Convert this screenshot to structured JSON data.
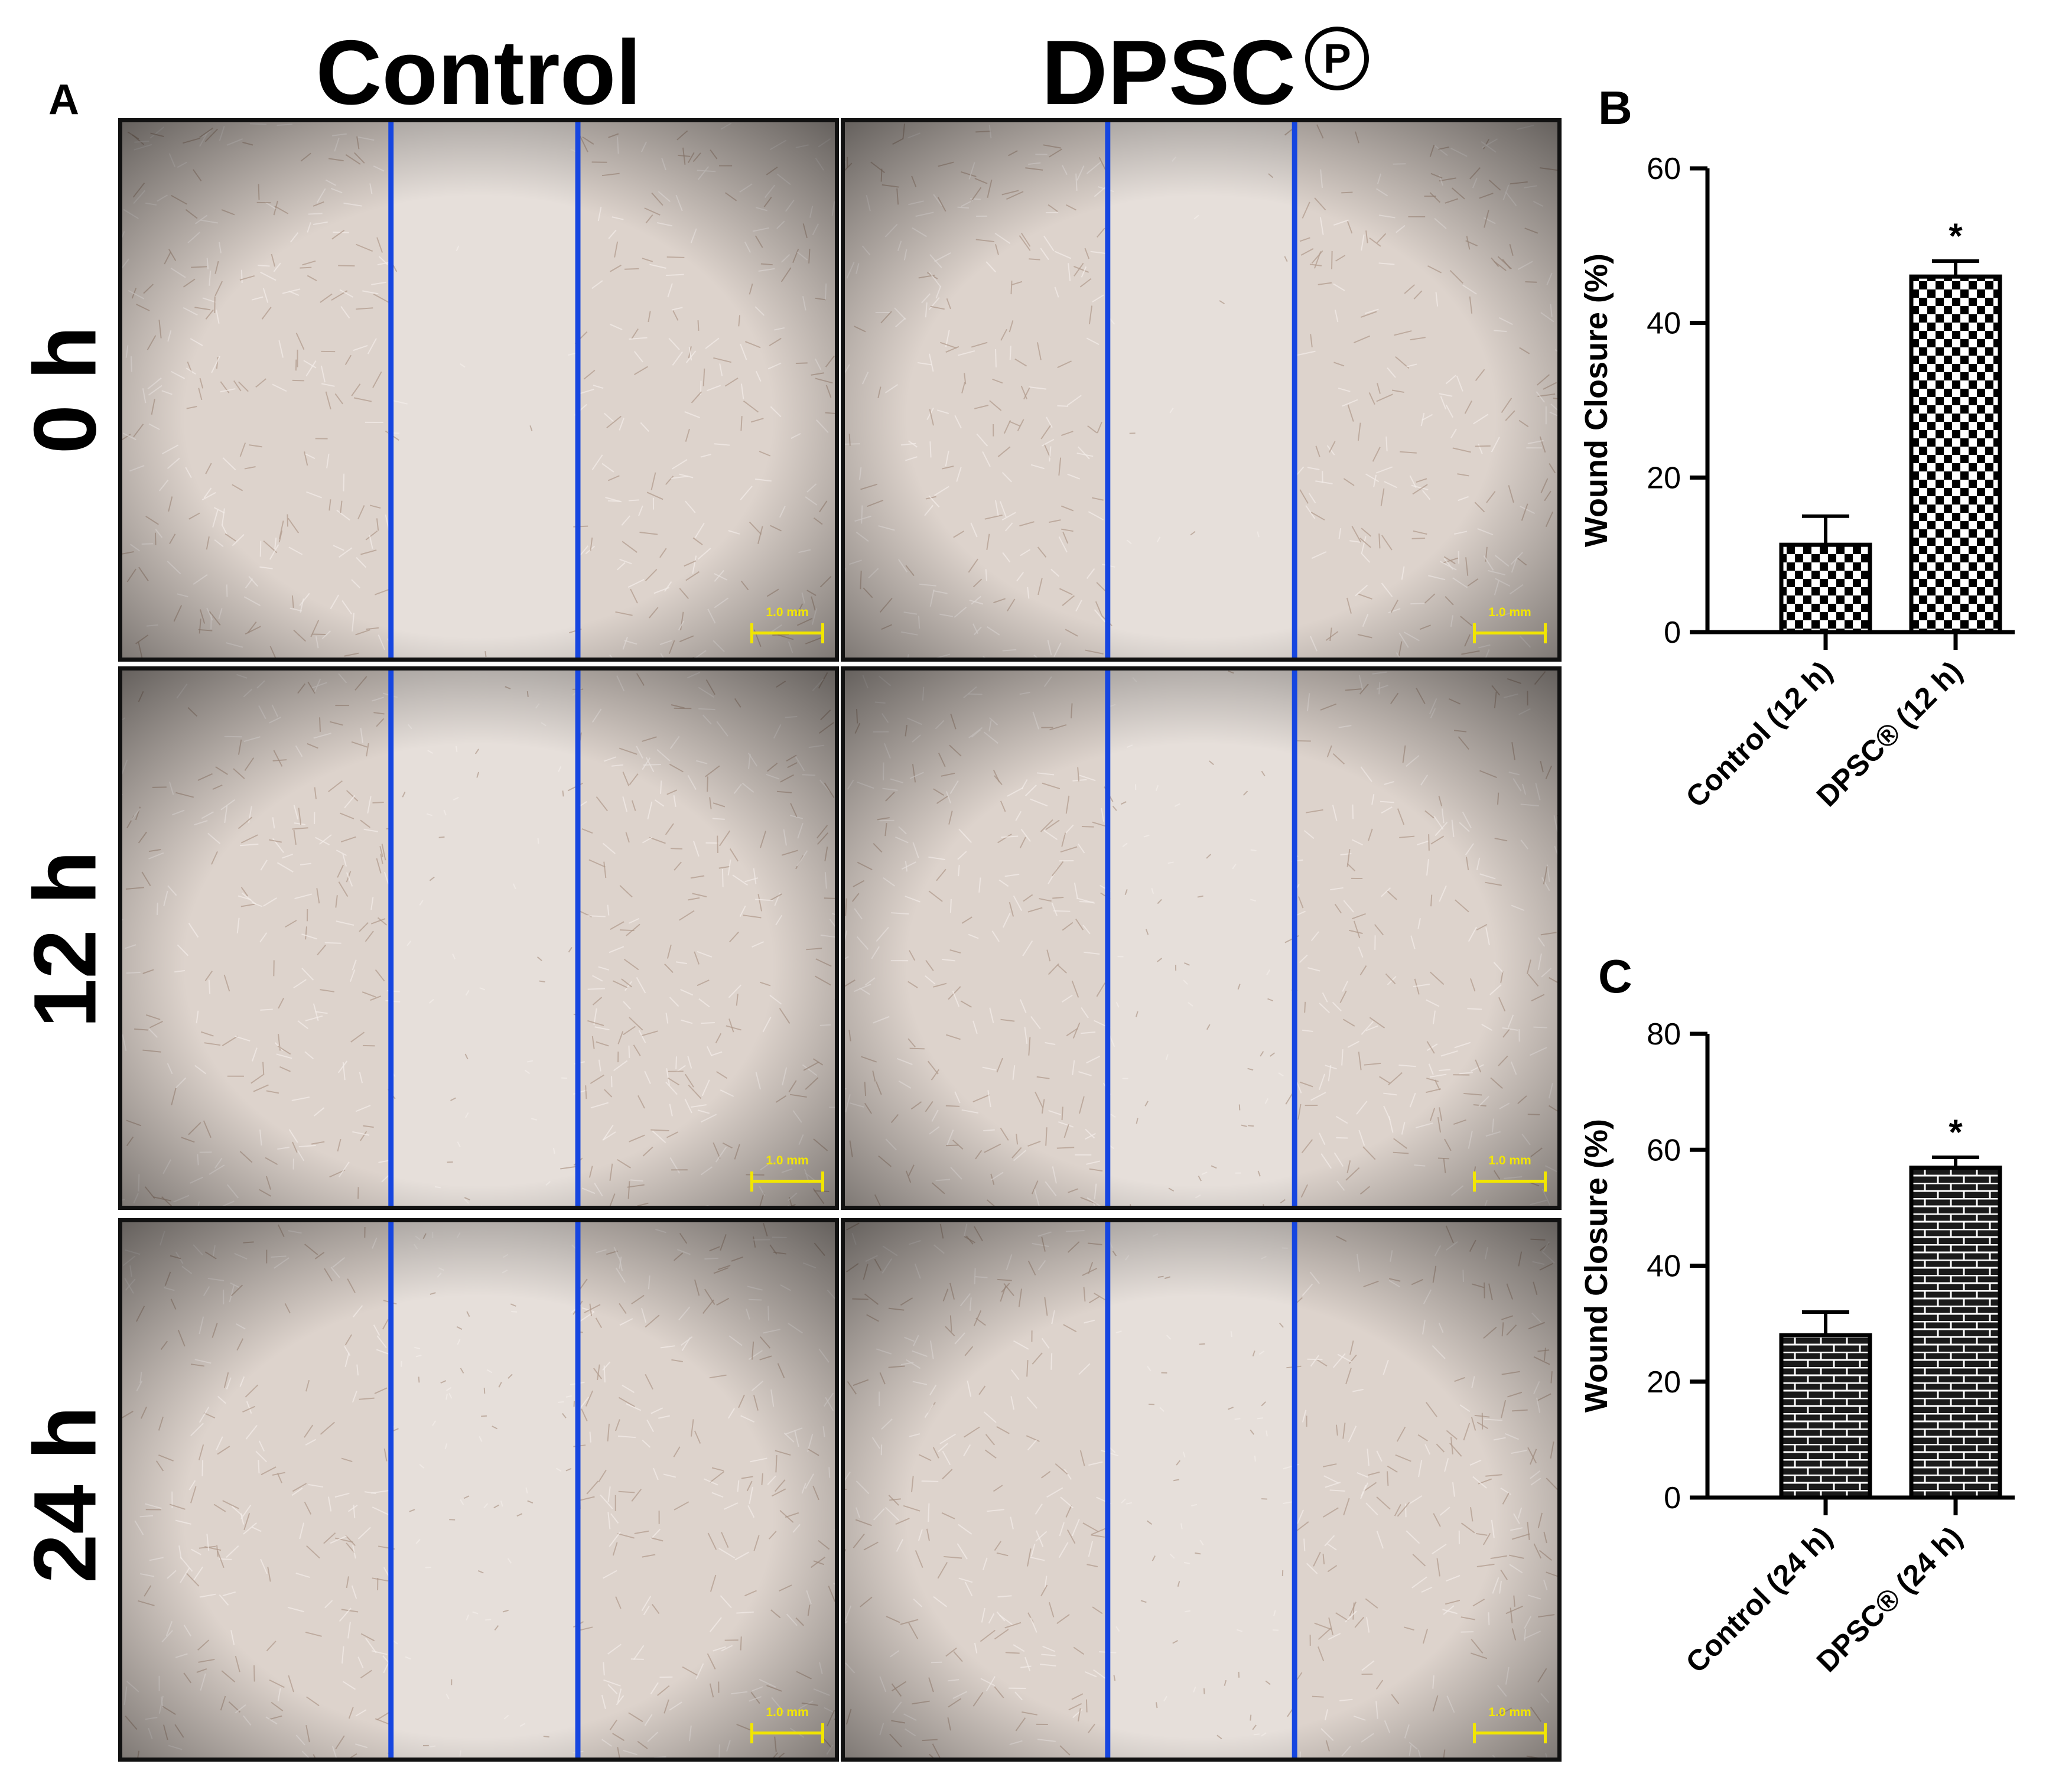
{
  "figure": {
    "panel_a": "A",
    "columns": [
      "Control",
      "DPSC"
    ],
    "column_mark": "P",
    "rows": [
      "0 h",
      "12 h",
      "24 h"
    ],
    "scale_label": "1.0 mm",
    "colors": {
      "wound_line": "#1646e0",
      "scale_bar": "#f2e600",
      "cell_bg": "#ddd3cc",
      "gap_bg": "#e6dfda"
    }
  },
  "chart_data": [
    {
      "panel": "B",
      "type": "bar",
      "categories": [
        "Control (12 h)",
        "DPSC® (12 h)"
      ],
      "values": [
        11.3,
        46.0
      ],
      "error": [
        3.7,
        2.0
      ],
      "significance": [
        "",
        "*"
      ],
      "ylabel": "Wound Closure (%)",
      "ylim": [
        0,
        60
      ],
      "yticks": [
        0,
        20,
        40,
        60
      ],
      "fill": "checkerboard"
    },
    {
      "panel": "C",
      "type": "bar",
      "categories": [
        "Control (24 h)",
        "DPSC® (24 h)"
      ],
      "values": [
        28.0,
        56.9
      ],
      "error": [
        4.0,
        1.8
      ],
      "significance": [
        "",
        "*"
      ],
      "ylabel": "Wound Closure (%)",
      "ylim": [
        0,
        80
      ],
      "yticks": [
        0,
        20,
        40,
        60,
        80
      ],
      "fill": "brick"
    }
  ]
}
